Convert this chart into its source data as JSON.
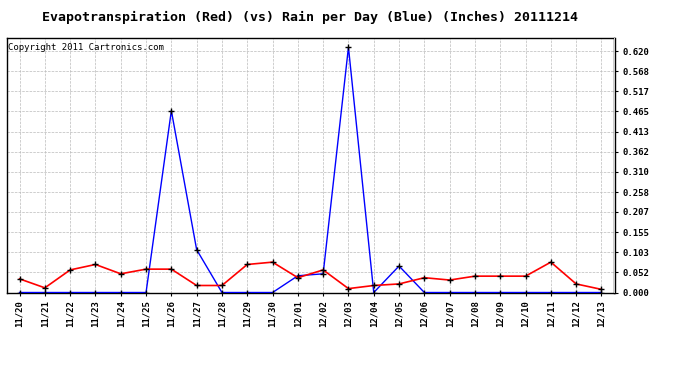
{
  "title": "Evapotranspiration (Red) (vs) Rain per Day (Blue) (Inches) 20111214",
  "copyright": "Copyright 2011 Cartronics.com",
  "x_labels": [
    "11/20",
    "11/21",
    "11/22",
    "11/23",
    "11/24",
    "11/25",
    "11/26",
    "11/27",
    "11/28",
    "11/29",
    "11/30",
    "12/01",
    "12/02",
    "12/03",
    "12/04",
    "12/05",
    "12/06",
    "12/07",
    "12/08",
    "12/09",
    "12/10",
    "12/11",
    "12/12",
    "12/13"
  ],
  "blue_rain": [
    0.0,
    0.0,
    0.0,
    0.0,
    0.0,
    0.0,
    0.467,
    0.11,
    0.0,
    0.0,
    0.0,
    0.043,
    0.048,
    0.63,
    0.0,
    0.068,
    0.0,
    0.0,
    0.0,
    0.0,
    0.0,
    0.0,
    0.0,
    0.0
  ],
  "red_et": [
    0.035,
    0.012,
    0.058,
    0.072,
    0.048,
    0.06,
    0.06,
    0.018,
    0.018,
    0.072,
    0.078,
    0.038,
    0.058,
    0.01,
    0.018,
    0.022,
    0.038,
    0.032,
    0.042,
    0.042,
    0.042,
    0.078,
    0.022,
    0.008
  ],
  "ylim": [
    0.0,
    0.655
  ],
  "yticks": [
    0.0,
    0.052,
    0.103,
    0.155,
    0.207,
    0.258,
    0.31,
    0.362,
    0.413,
    0.465,
    0.517,
    0.568,
    0.62
  ],
  "background_color": "#ffffff",
  "grid_color": "#bbbbbb",
  "title_fontsize": 9.5,
  "copyright_fontsize": 6.5,
  "tick_fontsize": 6.5,
  "fig_width": 6.9,
  "fig_height": 3.75,
  "dpi": 100
}
